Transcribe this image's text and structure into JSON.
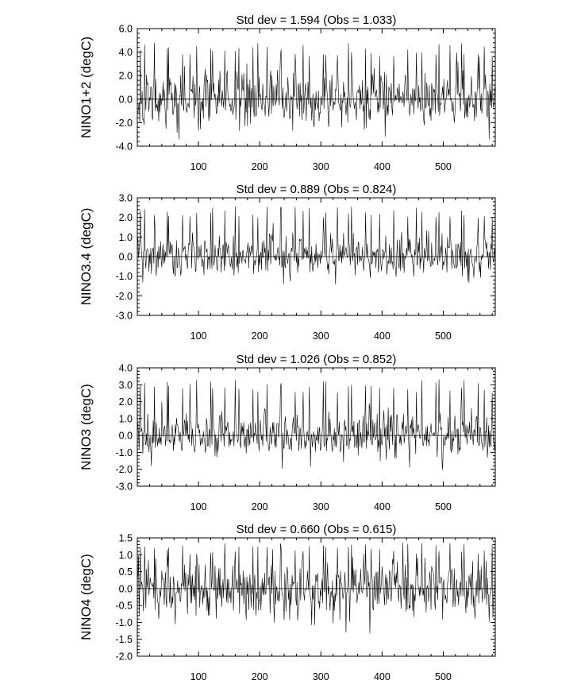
{
  "chart_data": [
    {
      "type": "line",
      "title": "Std dev = 1.594 (Obs = 1.033)",
      "ylabel": "NINO1+2 (degC)",
      "xlim": [
        0,
        585
      ],
      "ylim": [
        -4.0,
        6.0
      ],
      "yticks": [
        -4.0,
        -2.0,
        0.0,
        2.0,
        4.0,
        6.0
      ],
      "ytick_labels": [
        "-4.0",
        "-2.0",
        "0.0",
        "2.0",
        "4.0",
        "6.0"
      ],
      "xticks": [
        100,
        200,
        300,
        400,
        500
      ],
      "xtick_labels": [
        "100",
        "200",
        "300",
        "400",
        "500"
      ],
      "reference_line": 0.0,
      "series": [
        {
          "n_points": 585,
          "std": 1.594,
          "peak_max": 4.8,
          "min": -3.4,
          "bias": 0.0,
          "noise": 1.2,
          "seed": 11
        }
      ]
    },
    {
      "type": "line",
      "title": "Std dev = 0.889 (Obs = 0.824)",
      "ylabel": "NINO3.4 (degC)",
      "xlim": [
        0,
        585
      ],
      "ylim": [
        -3.0,
        3.0
      ],
      "yticks": [
        -3.0,
        -2.0,
        -1.0,
        0.0,
        1.0,
        2.0,
        3.0
      ],
      "ytick_labels": [
        "-3.0",
        "-2.0",
        "-1.0",
        "0.0",
        "1.0",
        "2.0",
        "3.0"
      ],
      "xticks": [
        100,
        200,
        300,
        400,
        500
      ],
      "xtick_labels": [
        "100",
        "200",
        "300",
        "400",
        "500"
      ],
      "reference_line": 0.0,
      "series": [
        {
          "n_points": 585,
          "std": 0.889,
          "peak_max": 2.55,
          "min": -2.3,
          "bias": 0.0,
          "noise": 0.55,
          "seed": 23
        }
      ]
    },
    {
      "type": "line",
      "title": "Std dev = 1.026 (Obs = 0.852)",
      "ylabel": "NINO3 (degC)",
      "xlim": [
        0,
        585
      ],
      "ylim": [
        -3.0,
        4.0
      ],
      "yticks": [
        -3.0,
        -2.0,
        -1.0,
        0.0,
        1.0,
        2.0,
        3.0,
        4.0
      ],
      "ytick_labels": [
        "-3.0",
        "-2.0",
        "-1.0",
        "0.0",
        "1.0",
        "2.0",
        "3.0",
        "4.0"
      ],
      "xticks": [
        100,
        200,
        300,
        400,
        500
      ],
      "xtick_labels": [
        "100",
        "200",
        "300",
        "400",
        "500"
      ],
      "reference_line": 0.0,
      "series": [
        {
          "n_points": 585,
          "std": 1.026,
          "peak_max": 3.3,
          "min": -2.6,
          "bias": 0.0,
          "noise": 0.7,
          "seed": 37
        }
      ]
    },
    {
      "type": "line",
      "title": "Std dev = 0.660 (Obs = 0.615)",
      "ylabel": "NINO4 (degC)",
      "xlim": [
        0,
        585
      ],
      "ylim": [
        -2.0,
        1.5
      ],
      "yticks": [
        -2.0,
        -1.5,
        -1.0,
        -0.5,
        0.0,
        0.5,
        1.0,
        1.5
      ],
      "ytick_labels": [
        "-2.0",
        "-1.5",
        "-1.0",
        "-0.5",
        "0.0",
        "0.5",
        "1.0",
        "1.5"
      ],
      "xticks": [
        100,
        200,
        300,
        400,
        500
      ],
      "xtick_labels": [
        "100",
        "200",
        "300",
        "400",
        "500"
      ],
      "reference_line": 0.0,
      "series": [
        {
          "n_points": 585,
          "std": 0.66,
          "peak_max": 1.35,
          "min": -1.75,
          "bias": -0.05,
          "noise": 0.45,
          "seed": 53
        }
      ]
    }
  ]
}
